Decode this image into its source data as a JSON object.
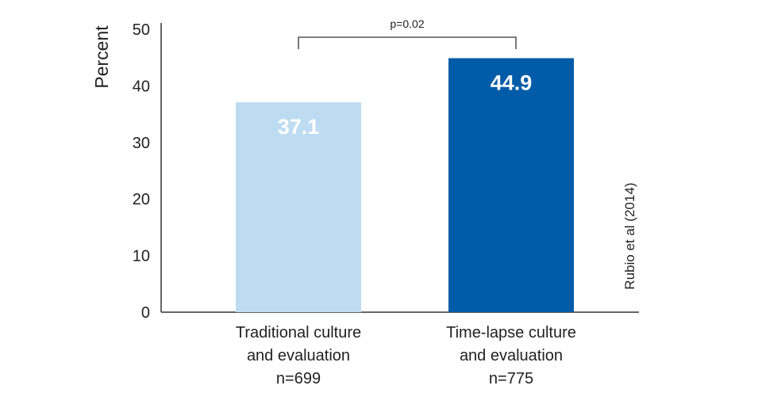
{
  "chart_data": {
    "type": "bar",
    "categories": [
      [
        "Traditional culture",
        "and evaluation",
        "n=699"
      ],
      [
        "Time-lapse culture",
        "and evaluation",
        "n=775"
      ]
    ],
    "values": [
      37.1,
      44.9
    ],
    "value_labels": [
      "37.1",
      "44.9"
    ],
    "colors": [
      "#bddcf1",
      "#005ca8"
    ],
    "ylabel": "Percent",
    "ylim": [
      0,
      50
    ],
    "yticks": [
      0,
      10,
      20,
      30,
      40,
      50
    ],
    "grid": false,
    "annotations": {
      "significance": "p=0.02",
      "source": "Rubio et al (2014)"
    }
  }
}
